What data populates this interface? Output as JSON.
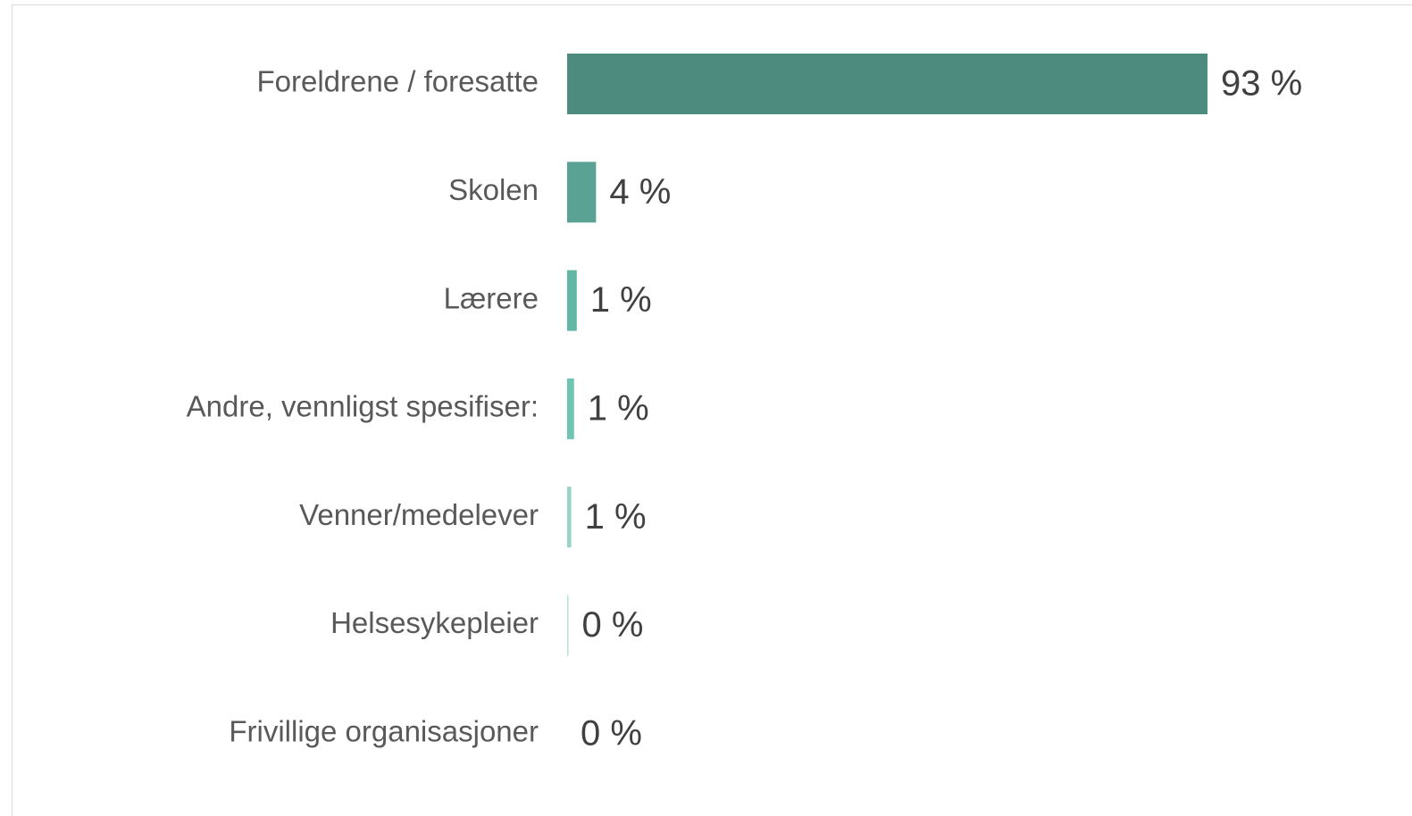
{
  "chart_data": {
    "type": "bar",
    "orientation": "horizontal",
    "categories": [
      "Foreldrene / foresatte",
      "Skolen",
      "Lærere",
      "Andre, vennligst spesifiser:",
      "Venner/medelever",
      "Helsesykepleier",
      "Frivillige organisasjoner"
    ],
    "values": [
      93,
      4.2,
      1.4,
      1.0,
      0.6,
      0.2,
      0
    ],
    "value_labels": [
      "93 %",
      "4 %",
      "1 %",
      "1 %",
      "1 %",
      "0 %",
      "0 %"
    ],
    "colors": [
      "#4e8b7f",
      "#5aa293",
      "#62b6a4",
      "#6cc4b2",
      "#98d5c8",
      "#b7e2d8",
      "#c9eae2"
    ]
  }
}
